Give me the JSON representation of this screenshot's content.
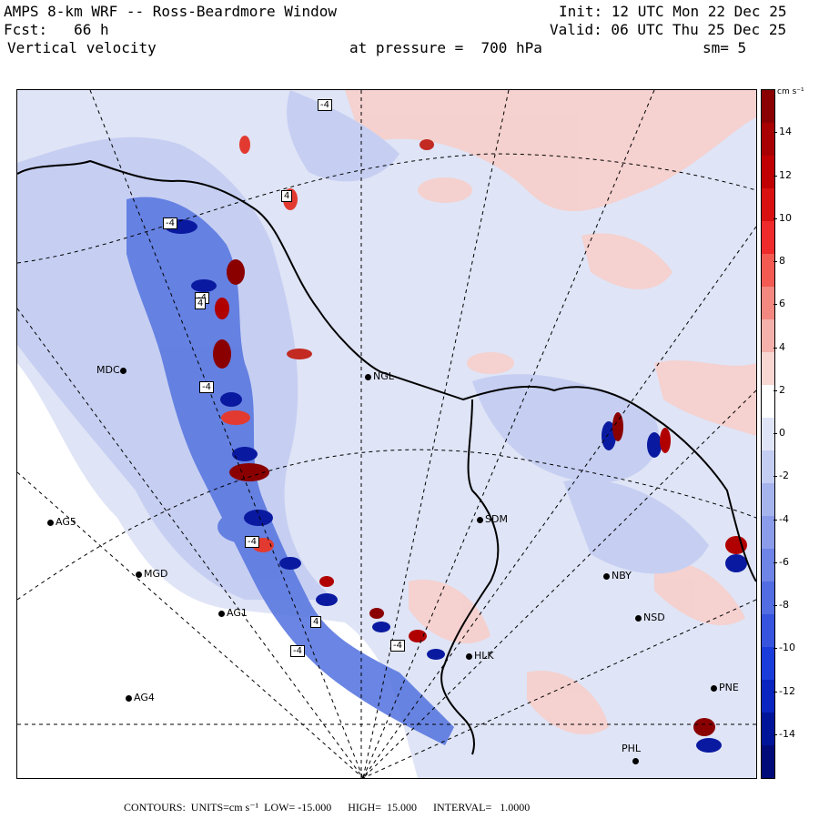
{
  "header": {
    "model": "AMPS 8-km WRF -- Ross-Beardmore Window",
    "init": "Init: 12 UTC Mon 22 Dec 25",
    "fcst": "Fcst:   66 h",
    "valid": "Valid: 06 UTC Thu 25 Dec 25",
    "field": "Vertical velocity",
    "pressure": "at pressure =  700 hPa",
    "smoothing": "sm= 5"
  },
  "colorbar": {
    "units": "cm s⁻¹",
    "ticks": [
      "14",
      "12",
      "10",
      "8",
      "6",
      "4",
      "2",
      "0",
      "-2",
      "-4",
      "-6",
      "-8",
      "-10",
      "-12",
      "-14"
    ],
    "min": -16,
    "max": 16
  },
  "footer": {
    "text": "CONTOURS:  UNITS=cm s⁻¹  LOW= -15.000      HIGH=  15.000      INTERVAL=   1.0000"
  },
  "stations": [
    {
      "id": "MDC",
      "label": "MDC",
      "side": "left"
    },
    {
      "id": "NGL",
      "label": "NGL",
      "side": "right"
    },
    {
      "id": "AG5",
      "label": "AG5",
      "side": "right"
    },
    {
      "id": "MGD",
      "label": "MGD",
      "side": "right"
    },
    {
      "id": "AG1",
      "label": "AG1",
      "side": "right"
    },
    {
      "id": "AG4",
      "label": "AG4",
      "side": "right"
    },
    {
      "id": "SDM",
      "label": "SDM",
      "side": "right"
    },
    {
      "id": "NBY",
      "label": "NBY",
      "side": "right"
    },
    {
      "id": "NSD",
      "label": "NSD",
      "side": "right"
    },
    {
      "id": "HLK",
      "label": "HLK",
      "side": "right"
    },
    {
      "id": "PNE",
      "label": "PNE",
      "side": "right"
    },
    {
      "id": "PHL",
      "label": "PHL",
      "side": "above"
    }
  ],
  "contour_labels": [
    "-4",
    "4",
    "-4",
    "-4",
    "4",
    "-4",
    "-4",
    "-4",
    "4",
    "-4"
  ],
  "palette": {
    "strong_neg": "#000090",
    "neg": "#3a5cdb",
    "weak_neg": "#c6cff2",
    "neutral": "#ffffff",
    "weak_pos": "#f6d0cc",
    "pos": "#e23a30",
    "strong_pos": "#8a0000",
    "land_mask": "#ffffff"
  }
}
